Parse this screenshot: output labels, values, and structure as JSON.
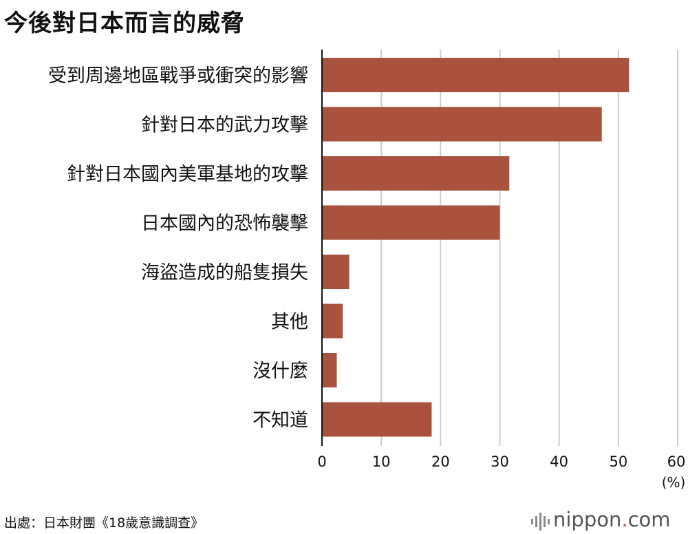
{
  "chart_data": {
    "type": "bar",
    "orientation": "horizontal",
    "title": "今後對日本而言的威脅",
    "categories": [
      "受到周邊地區戰爭或衝突的影響",
      "針對日本的武力攻擊",
      "針對日本國內美軍基地的攻擊",
      "日本國內的恐怖襲擊",
      "海盜造成的船隻損失",
      "其他",
      "沒什麼",
      "不知道"
    ],
    "values": [
      51.8,
      47.2,
      31.6,
      30.0,
      4.6,
      3.5,
      2.5,
      18.5
    ],
    "xlim": [
      0,
      60
    ],
    "xticks": [
      0,
      10,
      20,
      30,
      40,
      50,
      60
    ],
    "xunit": "(%)",
    "grid": true,
    "bar_color": "#a9533e",
    "grid_color": "#cccccc"
  },
  "footer": {
    "source": "出處：日本財團《18歲意識調查》",
    "brand_name": "nippon",
    "brand_dot": ".",
    "brand_tld": "com"
  }
}
